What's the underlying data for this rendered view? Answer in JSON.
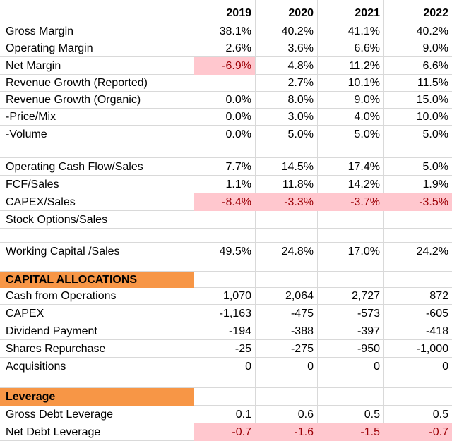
{
  "years": [
    "2019",
    "2020",
    "2021",
    "2022"
  ],
  "rows": [
    {
      "label": "Gross Margin",
      "values": [
        "38.1%",
        "40.2%",
        "41.1%",
        "40.2%"
      ]
    },
    {
      "label": "Operating Margin",
      "values": [
        "2.6%",
        "3.6%",
        "6.6%",
        "9.0%"
      ]
    },
    {
      "label": "Net Margin",
      "values": [
        "-6.9%",
        "4.8%",
        "11.2%",
        "6.6%"
      ]
    },
    {
      "label": "Revenue Growth (Reported)",
      "values": [
        "",
        "2.7%",
        "10.1%",
        "11.5%"
      ]
    },
    {
      "label": "Revenue Growth (Organic)",
      "values": [
        "0.0%",
        "8.0%",
        "9.0%",
        "15.0%"
      ]
    },
    {
      "label": "-Price/Mix",
      "values": [
        "0.0%",
        "3.0%",
        "4.0%",
        "10.0%"
      ]
    },
    {
      "label": "-Volume",
      "values": [
        "0.0%",
        "5.0%",
        "5.0%",
        "5.0%"
      ]
    },
    {
      "label": "Operating Cash Flow/Sales",
      "values": [
        "7.7%",
        "14.5%",
        "17.4%",
        "5.0%"
      ]
    },
    {
      "label": "FCF/Sales",
      "values": [
        "1.1%",
        "11.8%",
        "14.2%",
        "1.9%"
      ]
    },
    {
      "label": "CAPEX/Sales",
      "values": [
        "-8.4%",
        "-3.3%",
        "-3.7%",
        "-3.5%"
      ]
    },
    {
      "label": "Stock Options/Sales",
      "values": [
        "",
        "",
        "",
        ""
      ]
    },
    {
      "label": "Working Capital /Sales",
      "values": [
        "49.5%",
        "24.8%",
        "17.0%",
        "24.2%"
      ]
    },
    {
      "label": "CAPITAL ALLOCATIONS"
    },
    {
      "label": "Cash from Operations",
      "values": [
        "1,070",
        "2,064",
        "2,727",
        "872"
      ]
    },
    {
      "label": "CAPEX",
      "values": [
        "-1,163",
        "-475",
        "-573",
        "-605"
      ]
    },
    {
      "label": "Dividend Payment",
      "values": [
        "-194",
        "-388",
        "-397",
        "-418"
      ]
    },
    {
      "label": "Shares Repurchase",
      "values": [
        "-25",
        "-275",
        "-950",
        "-1,000"
      ]
    },
    {
      "label": "Acquisitions",
      "values": [
        "0",
        "0",
        "0",
        "0"
      ]
    },
    {
      "label": "Leverage"
    },
    {
      "label": "Gross Debt Leverage",
      "values": [
        "0.1",
        "0.6",
        "0.5",
        "0.5"
      ]
    },
    {
      "label": "Net Debt Leverage",
      "values": [
        "-0.7",
        "-1.6",
        "-1.5",
        "-0.7"
      ]
    }
  ],
  "colors": {
    "negative_fill": "#ffc7ce",
    "negative_text": "#9c0006",
    "section_fill": "#f79646",
    "grid": "#d9d9d9"
  }
}
